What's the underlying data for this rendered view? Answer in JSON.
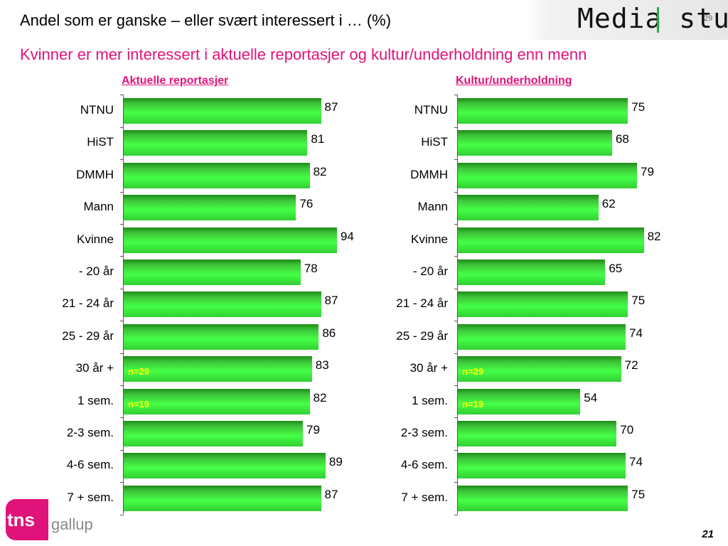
{
  "header": {
    "title": "Andel som er ganske – eller svært interessert i … (%)",
    "subtitle": "Kvinner er mer interessert i aktuelle reportasjer og kultur/underholdning enn menn",
    "logo_text": "Media stud",
    "logo_number": "29"
  },
  "footer": {
    "logo_tns": "tns",
    "logo_gallup": "gallup",
    "page_number": "21"
  },
  "colors": {
    "accent": "#e0137a",
    "bar_green": "#44ff46",
    "note_yellow": "#ffff00"
  },
  "chart_data": [
    {
      "type": "bar",
      "orientation": "horizontal",
      "title": "Aktuelle reportasjer",
      "categories": [
        "NTNU",
        "HiST",
        "DMMH",
        "Mann",
        "Kvinne",
        "- 20 år",
        "21 - 24 år",
        "25 - 29 år",
        "30 år +",
        "1 sem.",
        "2-3 sem.",
        "4-6 sem.",
        "7 + sem."
      ],
      "values": [
        87,
        81,
        82,
        76,
        94,
        78,
        87,
        86,
        83,
        82,
        79,
        89,
        87
      ],
      "notes": {
        "30 år +": "n=29",
        "1 sem.": "n=19"
      },
      "xlim": [
        0,
        100
      ]
    },
    {
      "type": "bar",
      "orientation": "horizontal",
      "title": "Kultur/underholdning",
      "categories": [
        "NTNU",
        "HiST",
        "DMMH",
        "Mann",
        "Kvinne",
        "- 20 år",
        "21 - 24 år",
        "25 - 29 år",
        "30 år +",
        "1 sem.",
        "2-3 sem.",
        "4-6 sem.",
        "7 + sem."
      ],
      "values": [
        75,
        68,
        79,
        62,
        82,
        65,
        75,
        74,
        72,
        54,
        70,
        74,
        75
      ],
      "notes": {
        "30 år +": "n=29",
        "1 sem.": "n=19"
      },
      "xlim": [
        0,
        100
      ]
    }
  ]
}
